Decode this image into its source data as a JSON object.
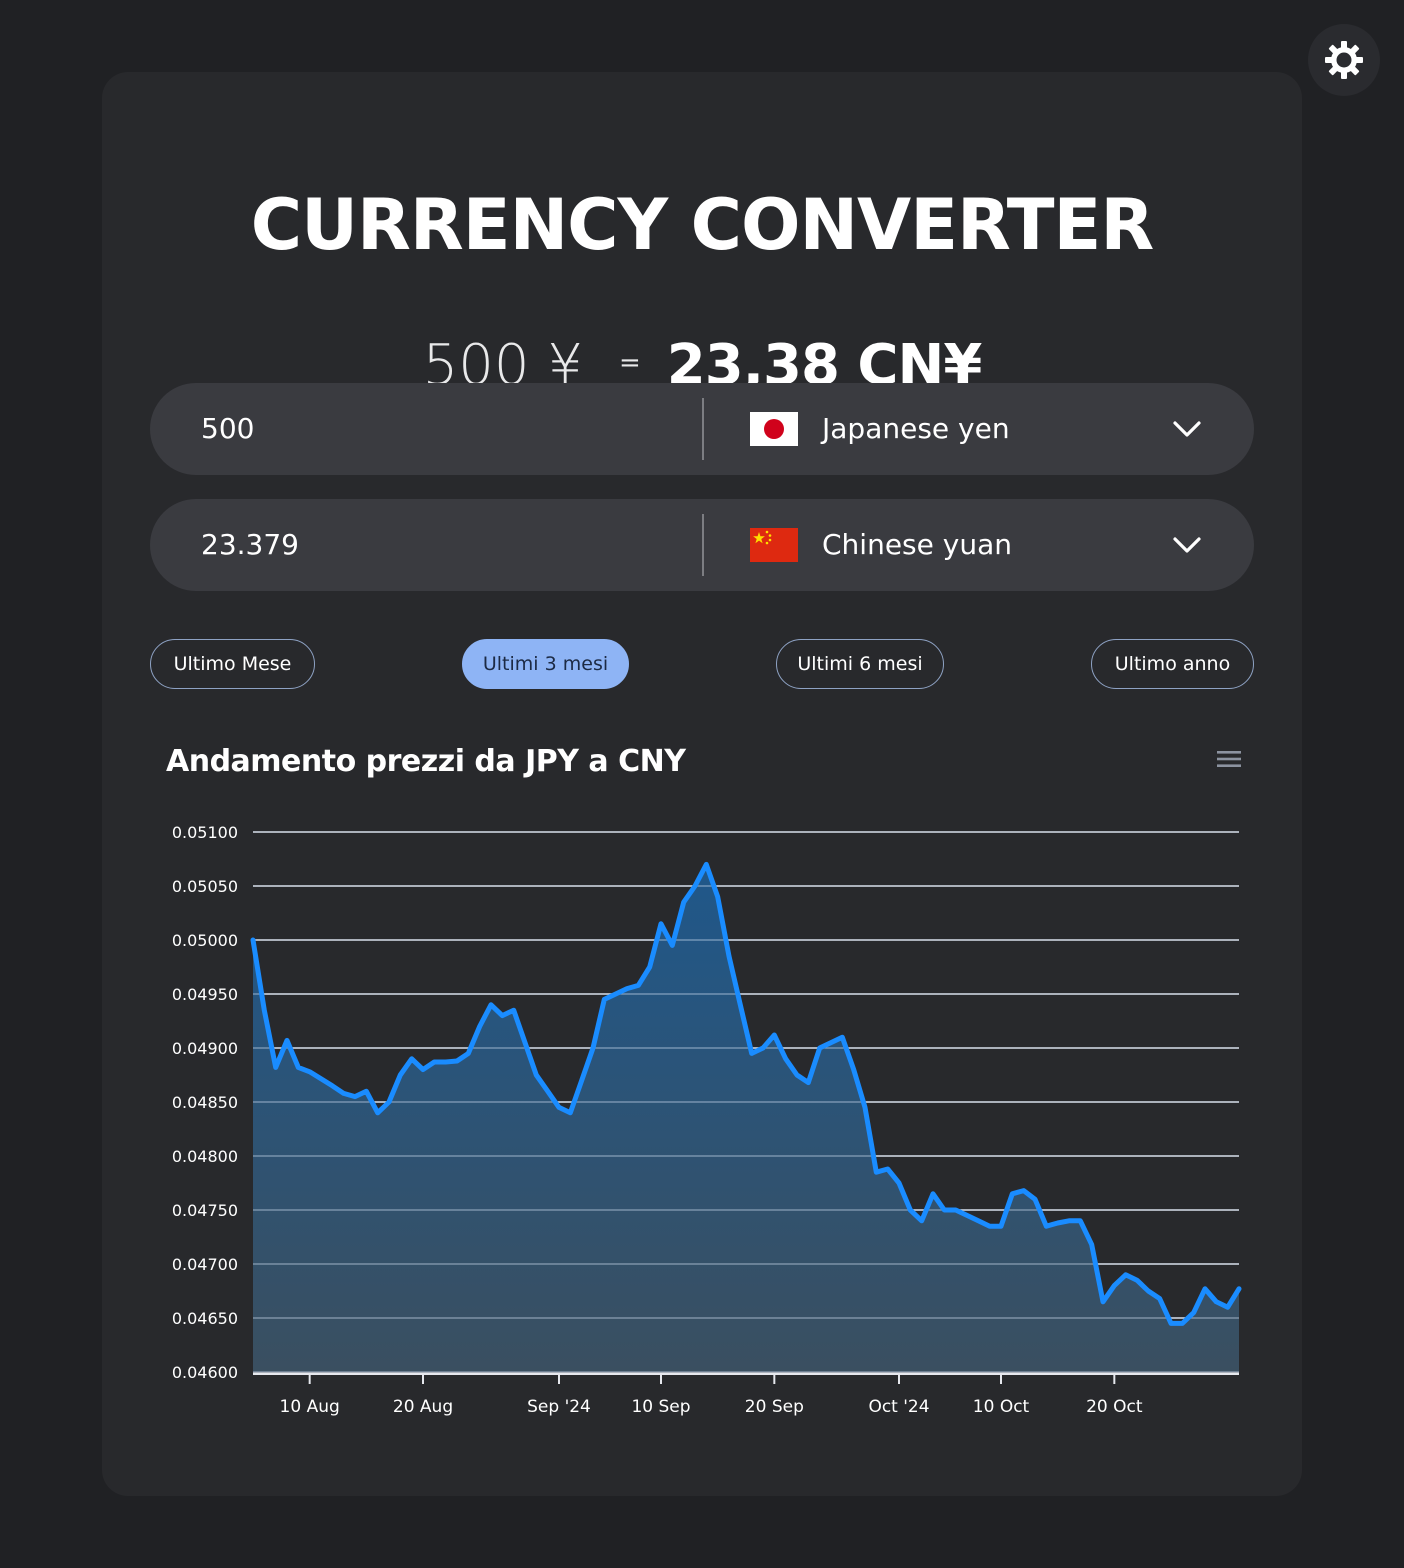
{
  "theme_toggle": {
    "icon": "sun-icon"
  },
  "title": "CURRENCY CONVERTER",
  "result": {
    "from_text": "500 ¥",
    "equals": "=",
    "to_text": "23,38 CN¥"
  },
  "from": {
    "amount": "500",
    "currency": "Japanese yen",
    "flag": "japan-flag-icon"
  },
  "to": {
    "amount": "23.379",
    "currency": "Chinese yuan",
    "flag": "china-flag-icon"
  },
  "ranges": [
    {
      "label": "Ultimo Mese",
      "active": false
    },
    {
      "label": "Ultimi 3 mesi",
      "active": true
    },
    {
      "label": "Ultimi 6 mesi",
      "active": false
    },
    {
      "label": "Ultimo anno",
      "active": false
    }
  ],
  "chart_title": "Andamento prezzi da JPY a CNY",
  "colors": {
    "background": "#202124",
    "card": "#28292c",
    "input": "#3a3b40",
    "accent": "#8eb4f5",
    "line": "#1a8cff"
  },
  "chart_data": {
    "type": "area",
    "title": "Andamento prezzi da JPY a CNY",
    "xlabel": "",
    "ylabel": "",
    "ylim": [
      0.046,
      0.051
    ],
    "xlim": [
      "2024-08-05",
      "2024-10-31"
    ],
    "grid": true,
    "yticks": [
      "0.04600",
      "0.04650",
      "0.04700",
      "0.04750",
      "0.04800",
      "0.04850",
      "0.04900",
      "0.04950",
      "0.05000",
      "0.05050",
      "0.05100"
    ],
    "xticks": [
      {
        "date": "2024-08-10",
        "label": "10 Aug"
      },
      {
        "date": "2024-08-20",
        "label": "20 Aug"
      },
      {
        "date": "2024-09-01",
        "label": "Sep '24"
      },
      {
        "date": "2024-09-10",
        "label": "10 Sep"
      },
      {
        "date": "2024-09-20",
        "label": "20 Sep"
      },
      {
        "date": "2024-10-01",
        "label": "Oct '24"
      },
      {
        "date": "2024-10-10",
        "label": "10 Oct"
      },
      {
        "date": "2024-10-20",
        "label": "20 Oct"
      }
    ],
    "series": [
      {
        "dates": [
          "2024-08-05",
          "2024-08-06",
          "2024-08-07",
          "2024-08-08",
          "2024-08-09",
          "2024-08-10",
          "2024-08-12",
          "2024-08-13",
          "2024-08-14",
          "2024-08-15",
          "2024-08-16",
          "2024-08-17",
          "2024-08-18",
          "2024-08-19",
          "2024-08-20",
          "2024-08-21",
          "2024-08-22",
          "2024-08-23",
          "2024-08-24",
          "2024-08-25",
          "2024-08-26",
          "2024-08-27",
          "2024-08-28",
          "2024-08-29",
          "2024-08-30",
          "2024-08-31",
          "2024-09-01",
          "2024-09-02",
          "2024-09-03",
          "2024-09-04",
          "2024-09-05",
          "2024-09-06",
          "2024-09-07",
          "2024-09-08",
          "2024-09-09",
          "2024-09-10",
          "2024-09-11",
          "2024-09-12",
          "2024-09-13",
          "2024-09-14",
          "2024-09-15",
          "2024-09-16",
          "2024-09-17",
          "2024-09-18",
          "2024-09-19",
          "2024-09-20",
          "2024-09-21",
          "2024-09-22",
          "2024-09-23",
          "2024-09-24",
          "2024-09-25",
          "2024-09-26",
          "2024-09-27",
          "2024-09-28",
          "2024-09-29",
          "2024-09-30",
          "2024-10-01",
          "2024-10-02",
          "2024-10-03",
          "2024-10-04",
          "2024-10-05",
          "2024-10-06",
          "2024-10-07",
          "2024-10-08",
          "2024-10-09",
          "2024-10-10",
          "2024-10-11",
          "2024-10-12",
          "2024-10-13",
          "2024-10-14",
          "2024-10-15",
          "2024-10-16",
          "2024-10-17",
          "2024-10-18",
          "2024-10-19",
          "2024-10-20",
          "2024-10-21",
          "2024-10-22",
          "2024-10-23",
          "2024-10-24",
          "2024-10-25",
          "2024-10-26",
          "2024-10-27",
          "2024-10-28",
          "2024-10-29",
          "2024-10-30",
          "2024-10-31"
        ],
        "values": [
          0.05,
          0.04935,
          0.04882,
          0.04907,
          0.04882,
          0.04878,
          0.04865,
          0.04858,
          0.04855,
          0.0486,
          0.0484,
          0.0485,
          0.04875,
          0.0489,
          0.0488,
          0.04887,
          0.04887,
          0.04888,
          0.04895,
          0.0492,
          0.0494,
          0.0493,
          0.04935,
          0.04905,
          0.04875,
          0.0486,
          0.04845,
          0.0484,
          0.0487,
          0.049,
          0.04945,
          0.0495,
          0.04955,
          0.04958,
          0.04975,
          0.05015,
          0.04995,
          0.05035,
          0.0505,
          0.0507,
          0.0504,
          0.04985,
          0.0494,
          0.04895,
          0.049,
          0.04912,
          0.0489,
          0.04875,
          0.04868,
          0.049,
          0.04905,
          0.0491,
          0.0488,
          0.04845,
          0.04785,
          0.04788,
          0.04775,
          0.0475,
          0.0474,
          0.04765,
          0.0475,
          0.0475,
          0.04745,
          0.0474,
          0.04735,
          0.04735,
          0.04765,
          0.04768,
          0.0476,
          0.04735,
          0.04738,
          0.0474,
          0.0474,
          0.04718,
          0.04665,
          0.0468,
          0.0469,
          0.04685,
          0.04675,
          0.04668,
          0.04645,
          0.04645,
          0.04655,
          0.04677,
          0.04665,
          0.0466,
          0.04677
        ]
      }
    ]
  }
}
